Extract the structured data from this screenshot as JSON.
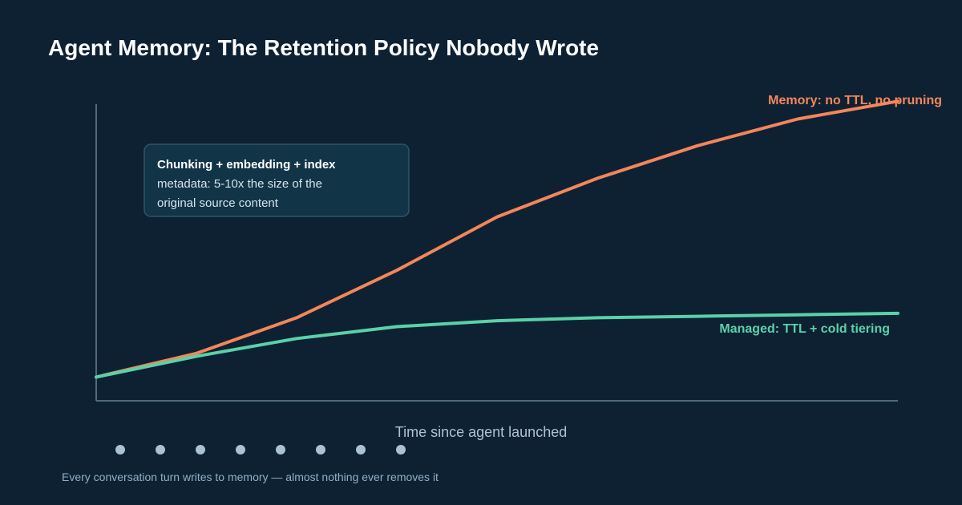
{
  "colors": {
    "background": "#0e2133",
    "axis": "#4f6b7c",
    "unmanaged": "#f4865a",
    "managed": "#5ad1a9",
    "annotation_fill": "#123447",
    "annotation_stroke": "#2f5466",
    "dots": "#a9c3d3"
  },
  "chart_data": {
    "type": "line",
    "title": "Agent Memory: The Retention Policy Nobody Wrote",
    "xlabel": "Time since agent launched",
    "ylabel": "",
    "x": [
      0,
      1,
      2,
      3,
      4,
      5,
      6,
      7,
      8
    ],
    "ylim": [
      0,
      100
    ],
    "grid": false,
    "series": [
      {
        "name": "Memory: no TTL, no pruning",
        "color": "#f4865a",
        "values": [
          8,
          16,
          28,
          44,
          62,
          75,
          86,
          95,
          101
        ]
      },
      {
        "name": "Managed: TTL + cold tiering",
        "color": "#5ad1a9",
        "values": [
          8,
          15,
          21,
          25,
          27,
          28,
          28.5,
          29,
          29.5
        ]
      }
    ],
    "annotation": {
      "title": "Chunking + embedding + index",
      "lines": [
        "metadata: 5-10x the size of the",
        "original source content"
      ]
    },
    "turn_markers": 8,
    "footnote": "Every conversation turn writes to memory — almost nothing ever removes it"
  }
}
